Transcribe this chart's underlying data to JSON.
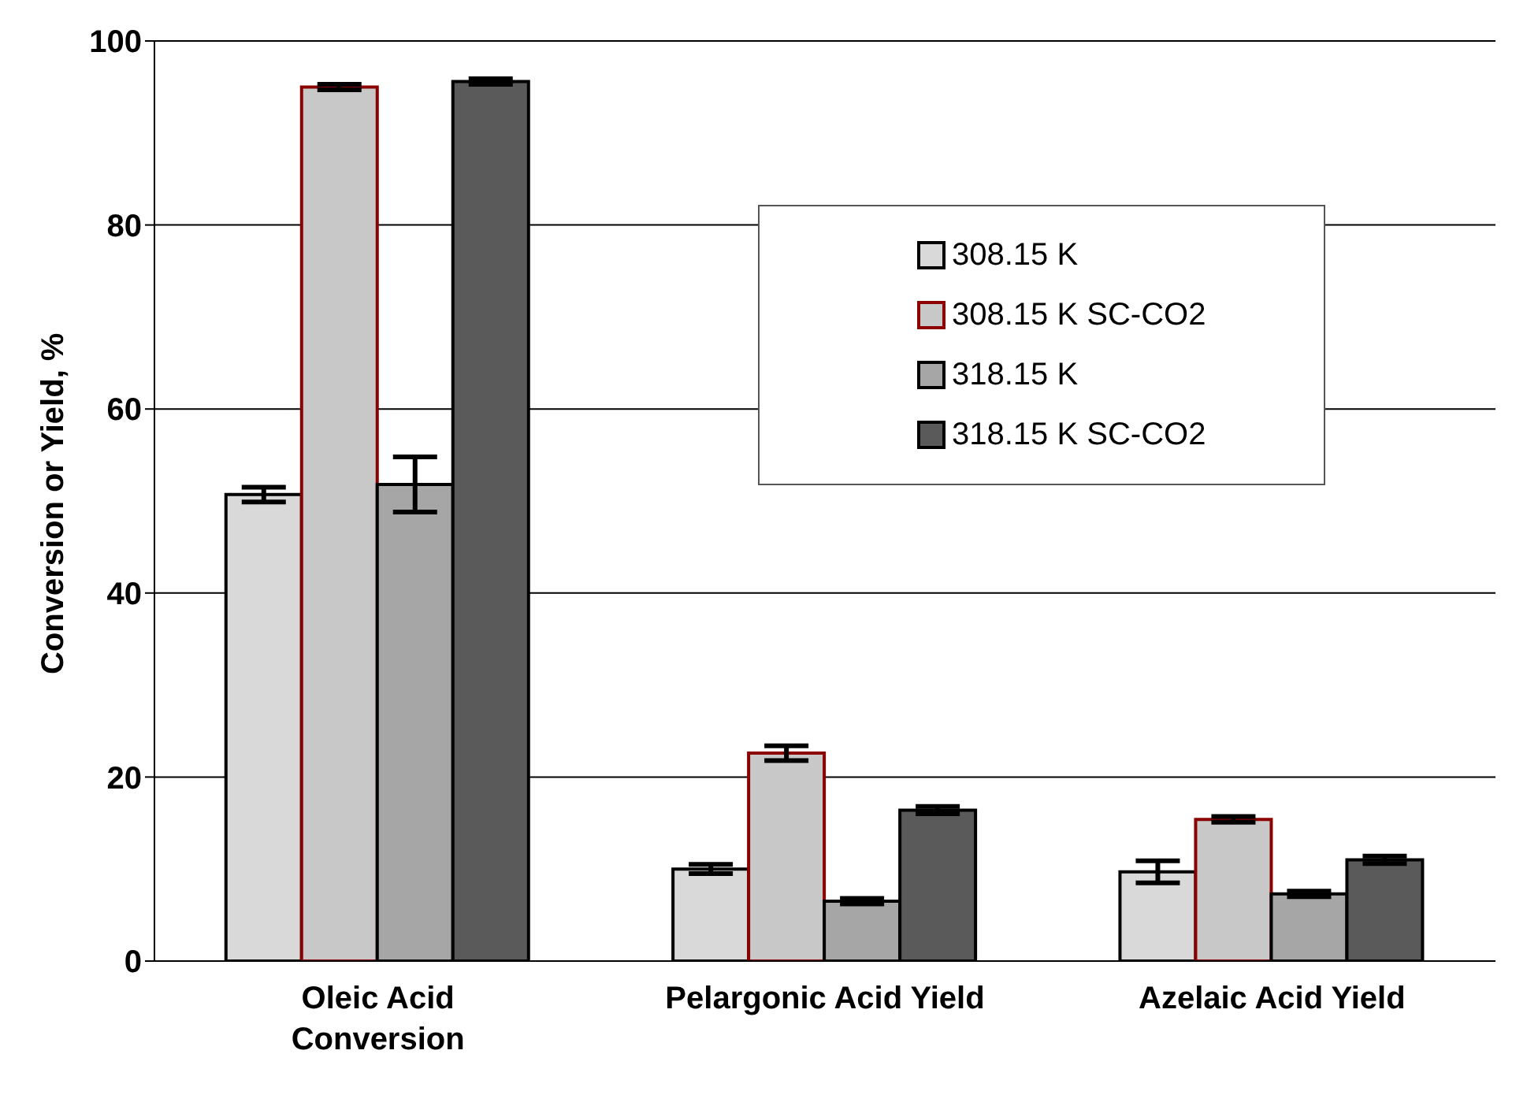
{
  "chart_data": {
    "type": "bar",
    "ylabel": "Conversion or Yield, %",
    "categories": [
      "Oleic Acid\nConversion",
      "Pelargonic Acid Yield",
      "Azelaic Acid Yield"
    ],
    "series": [
      {
        "name": "308.15 K",
        "color": "#d9d9d9",
        "values": [
          50.7,
          10.0,
          9.7
        ],
        "errors": [
          0.8,
          0.5,
          1.2
        ]
      },
      {
        "name": "308.15 K SC-CO2",
        "color": "#c8c8c8",
        "values": [
          95.0,
          22.6,
          15.4
        ],
        "errors": [
          0.3,
          0.8,
          0.3
        ]
      },
      {
        "name": "318.15 K",
        "color": "#a6a6a6",
        "values": [
          51.8,
          6.5,
          7.3
        ],
        "errors": [
          3.0,
          0.3,
          0.3
        ]
      },
      {
        "name": "318.15 K SC-CO2",
        "color": "#5a5a5a",
        "values": [
          95.6,
          16.4,
          11.0
        ],
        "errors": [
          0.3,
          0.4,
          0.4
        ]
      }
    ],
    "ylim": [
      0,
      100
    ],
    "yticks": [
      0,
      20,
      40,
      60,
      80,
      100
    ],
    "grid": "y",
    "legend": "top right"
  }
}
